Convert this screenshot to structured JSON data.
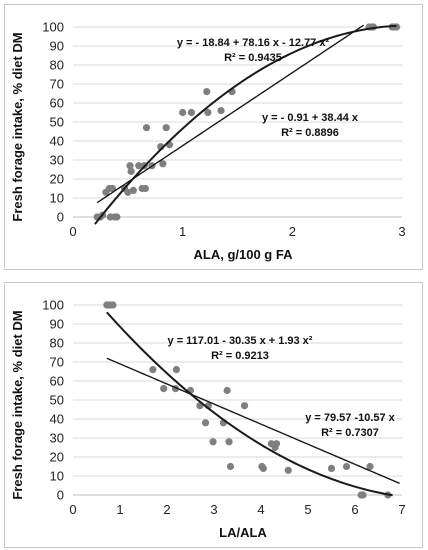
{
  "chart_data": [
    {
      "id": "top",
      "type": "scatter",
      "title": "",
      "xlabel": "ALA, g/100 g FA",
      "ylabel": "Fresh forage intake, % diet DM",
      "xlim": [
        0,
        3
      ],
      "ylim": [
        0,
        100
      ],
      "xticks": [
        0,
        1,
        2,
        3
      ],
      "yticks": [
        0,
        10,
        20,
        30,
        40,
        50,
        60,
        70,
        80,
        90,
        100
      ],
      "grid": "horizontal",
      "points": [
        [
          0.22,
          0
        ],
        [
          0.25,
          0
        ],
        [
          0.27,
          1
        ],
        [
          0.3,
          13
        ],
        [
          0.33,
          15
        ],
        [
          0.34,
          0
        ],
        [
          0.36,
          15
        ],
        [
          0.38,
          0
        ],
        [
          0.4,
          0
        ],
        [
          0.47,
          15
        ],
        [
          0.5,
          13
        ],
        [
          0.52,
          27
        ],
        [
          0.53,
          24
        ],
        [
          0.55,
          14
        ],
        [
          0.6,
          27
        ],
        [
          0.63,
          15
        ],
        [
          0.65,
          27
        ],
        [
          0.66,
          15
        ],
        [
          0.67,
          47
        ],
        [
          0.72,
          27
        ],
        [
          0.8,
          37
        ],
        [
          0.82,
          28
        ],
        [
          0.85,
          47
        ],
        [
          0.88,
          38
        ],
        [
          1.0,
          55
        ],
        [
          1.08,
          55
        ],
        [
          1.22,
          66
        ],
        [
          1.23,
          55
        ],
        [
          1.35,
          56
        ],
        [
          1.45,
          66
        ],
        [
          2.7,
          100
        ],
        [
          2.72,
          100
        ],
        [
          2.74,
          100
        ],
        [
          2.91,
          100
        ],
        [
          2.93,
          100
        ],
        [
          2.95,
          100
        ]
      ],
      "fits": [
        {
          "kind": "poly2",
          "coef": [
            -18.84,
            78.16,
            -12.77
          ],
          "range": [
            0.2,
            2.95
          ],
          "equation": "y = - 18.84 + 78.16 x - 12.77 x²",
          "r2": "R² = 0.9435"
        },
        {
          "kind": "linear",
          "coef": [
            -0.91,
            38.44
          ],
          "range": [
            0.22,
            2.65
          ],
          "equation": "y = - 0.91 + 38.44 x",
          "r2": "R² = 0.8896"
        }
      ]
    },
    {
      "id": "bottom",
      "type": "scatter",
      "title": "",
      "xlabel": "LA/ALA",
      "ylabel": "Fresh forage intake, % diet DM",
      "xlim": [
        0,
        7
      ],
      "ylim": [
        0,
        100
      ],
      "xticks": [
        0,
        1,
        2,
        3,
        4,
        5,
        6,
        7
      ],
      "yticks": [
        0,
        10,
        20,
        30,
        40,
        50,
        60,
        70,
        80,
        90,
        100
      ],
      "grid": "horizontal",
      "points": [
        [
          0.72,
          100
        ],
        [
          0.76,
          100
        ],
        [
          0.8,
          100
        ],
        [
          0.85,
          100
        ],
        [
          1.7,
          66
        ],
        [
          1.93,
          56
        ],
        [
          2.18,
          56
        ],
        [
          2.2,
          66
        ],
        [
          2.5,
          55
        ],
        [
          2.7,
          47
        ],
        [
          2.82,
          38
        ],
        [
          2.88,
          47
        ],
        [
          2.98,
          28
        ],
        [
          3.2,
          38
        ],
        [
          3.28,
          55
        ],
        [
          3.32,
          28
        ],
        [
          3.35,
          15
        ],
        [
          3.65,
          47
        ],
        [
          4.02,
          15
        ],
        [
          4.05,
          14
        ],
        [
          4.22,
          27
        ],
        [
          4.3,
          25
        ],
        [
          4.33,
          27
        ],
        [
          4.58,
          13
        ],
        [
          5.5,
          14
        ],
        [
          5.82,
          15
        ],
        [
          6.13,
          0
        ],
        [
          6.17,
          0
        ],
        [
          6.32,
          15
        ],
        [
          6.7,
          0
        ]
      ],
      "fits": [
        {
          "kind": "poly2",
          "coef": [
            117.01,
            -30.35,
            1.93
          ],
          "range": [
            0.72,
            6.8
          ],
          "equation": "y = 117.01 - 30.35 x + 1.93 x²",
          "r2": "R² = 0.9213"
        },
        {
          "kind": "linear",
          "coef": [
            79.57,
            -10.57
          ],
          "range": [
            0.72,
            6.95
          ],
          "equation": "y = 79.57 -10.57 x",
          "r2": "R² = 0.7307"
        }
      ]
    }
  ]
}
